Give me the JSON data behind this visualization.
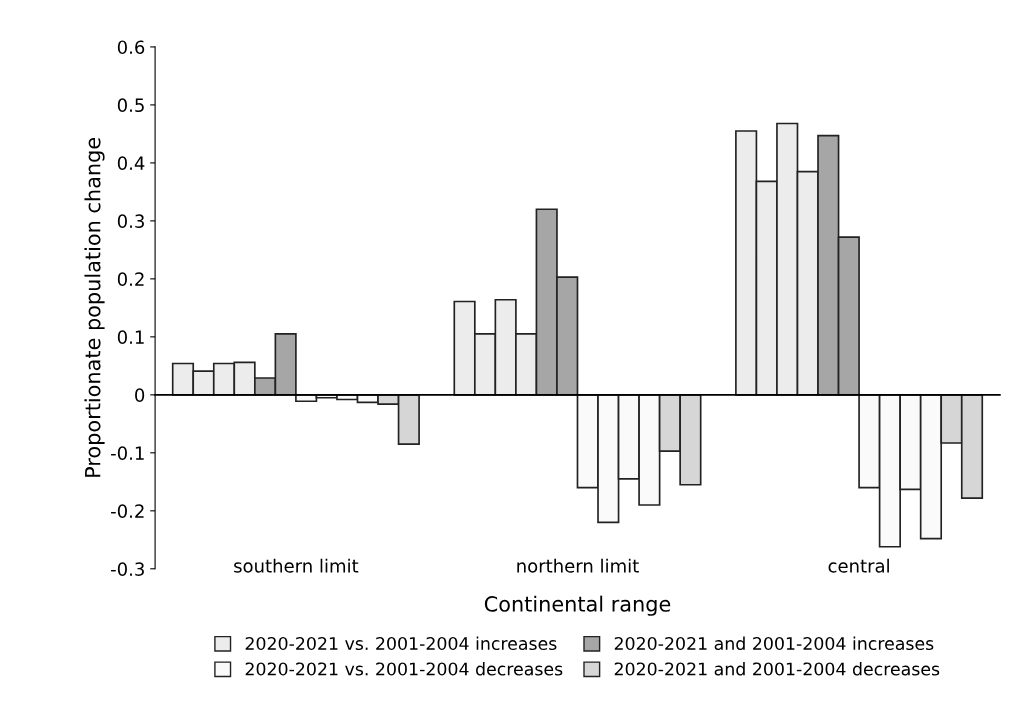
{
  "chart_data": {
    "type": "bar",
    "xlabel": "Continental range",
    "ylabel": "Proportionate population change",
    "categories": [
      "southern limit",
      "northern limit",
      "central"
    ],
    "series": [
      {
        "name": "2020-2021 vs. 2001-2004 increases",
        "color": "#ececec",
        "values": [
          0.054,
          0.161,
          0.455
        ]
      },
      {
        "color": "#ececec",
        "values": [
          0.041,
          0.105,
          0.368
        ]
      },
      {
        "color": "#ececec",
        "values": [
          0.054,
          0.164,
          0.468
        ]
      },
      {
        "color": "#ececec",
        "values": [
          0.056,
          0.105,
          0.385
        ]
      },
      {
        "name": "2020-2021 and 2001-2004 increases",
        "color": "#a6a6a6",
        "values": [
          0.029,
          0.32,
          0.447
        ]
      },
      {
        "color": "#a6a6a6",
        "values": [
          0.105,
          0.203,
          0.272
        ]
      },
      {
        "name": "2020-2021 vs. 2001-2004 decreases",
        "color": "#fafafa",
        "values": [
          -0.011,
          -0.16,
          -0.16
        ]
      },
      {
        "color": "#fafafa",
        "values": [
          -0.005,
          -0.22,
          -0.262
        ]
      },
      {
        "color": "#fafafa",
        "values": [
          -0.008,
          -0.145,
          -0.163
        ]
      },
      {
        "color": "#fafafa",
        "values": [
          -0.013,
          -0.19,
          -0.248
        ]
      },
      {
        "name": "2020-2021 and 2001-2004 decreases",
        "color": "#d6d6d6",
        "values": [
          -0.016,
          -0.097,
          -0.083
        ]
      },
      {
        "color": "#d6d6d6",
        "values": [
          -0.085,
          -0.155,
          -0.178
        ]
      }
    ],
    "ylim": [
      -0.3,
      0.6
    ],
    "yticks": [
      -0.3,
      -0.2,
      -0.1,
      0,
      0.1,
      0.2,
      0.3,
      0.4,
      0.5,
      0.6
    ],
    "legend": "bottom"
  }
}
